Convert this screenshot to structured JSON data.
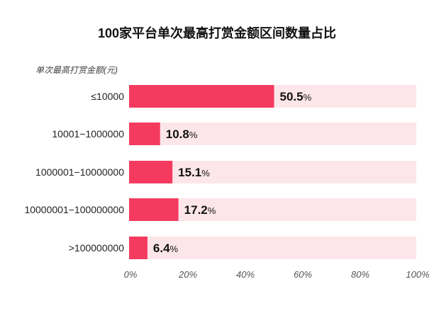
{
  "chart_data": {
    "type": "bar",
    "orientation": "horizontal",
    "title": "100家平台单次最高打赏金额区间数量占比",
    "ylabel": "单次最高打赏金额(元)",
    "xlabel": "",
    "categories": [
      "≤10000",
      "10001−1000000",
      "1000001−10000000",
      "10000001−100000000",
      ">100000000"
    ],
    "values": [
      50.5,
      10.8,
      15.1,
      17.2,
      6.4
    ],
    "value_unit": "%",
    "xlim": [
      0,
      100
    ],
    "x_ticks": [
      "0%",
      "20%",
      "40%",
      "60%",
      "80%",
      "100%"
    ],
    "grid": false,
    "colors": {
      "bar": "#f43b5f",
      "track": "#fde6ea",
      "label": "#111111",
      "tick": "#555555"
    }
  }
}
